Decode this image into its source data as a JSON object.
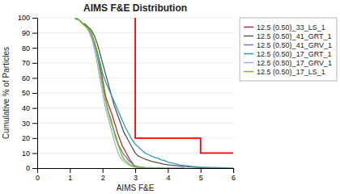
{
  "chart_data": {
    "type": "line",
    "title": "AIMS F&E Distribution",
    "xlabel": "AIMS F&E",
    "ylabel": "Cumulative % of Particles",
    "xlim": [
      0,
      6
    ],
    "ylim": [
      0,
      100
    ],
    "xticks": [
      0,
      1,
      2,
      3,
      4,
      5,
      6
    ],
    "yticks": [
      0,
      10,
      20,
      30,
      40,
      50,
      60,
      70,
      80,
      90,
      100
    ],
    "grid": "y",
    "legend": "right",
    "series": [
      {
        "name": "12.5 (0.50)_33_LS_1",
        "color": "#aa3333",
        "x": [
          1.15,
          1.2,
          1.25,
          1.3,
          1.35,
          1.4,
          1.45,
          1.5,
          1.55,
          1.6,
          1.65,
          1.7,
          1.75,
          1.8,
          1.85,
          1.9,
          1.95,
          2.0,
          2.05,
          2.1,
          2.15,
          2.2,
          2.25,
          2.3,
          2.35,
          2.4,
          2.45,
          2.5,
          2.55,
          2.6,
          2.65,
          2.7,
          2.75,
          2.8,
          2.85,
          2.9,
          2.95,
          3.0,
          3.1,
          3.2,
          3.3,
          3.5,
          3.7,
          3.9,
          4.1,
          4.3
        ],
        "values": [
          100,
          99,
          99,
          98,
          97,
          96,
          95,
          94,
          93,
          91,
          89,
          87,
          84,
          80,
          76,
          71,
          65,
          59,
          53,
          47,
          44,
          41,
          38,
          35,
          31,
          28,
          24,
          21,
          18,
          15,
          13,
          11,
          9,
          7,
          5,
          4,
          2,
          1,
          0.5,
          0.3,
          0.1,
          0.05,
          0.02,
          0.01,
          0.0,
          0.0
        ]
      },
      {
        "name": "12.5 (0.50)_41_GRT_1",
        "color": "#555555",
        "x": [
          1.15,
          1.2,
          1.25,
          1.3,
          1.35,
          1.4,
          1.45,
          1.5,
          1.55,
          1.6,
          1.65,
          1.7,
          1.75,
          1.8,
          1.85,
          1.9,
          1.95,
          2.0,
          2.05,
          2.1,
          2.15,
          2.2,
          2.25,
          2.3,
          2.35,
          2.4,
          2.45,
          2.5,
          2.55,
          2.6,
          2.65,
          2.7,
          2.75,
          2.8,
          2.85,
          2.9,
          2.95,
          3.0,
          3.1,
          3.2,
          3.3,
          3.5,
          3.7,
          3.9,
          4.1,
          4.3,
          4.5,
          4.7,
          5.0,
          5.3,
          5.6
        ],
        "values": [
          100,
          99,
          99,
          98,
          97,
          96,
          96,
          95,
          94,
          93,
          92,
          90,
          88,
          85,
          82,
          78,
          74,
          70,
          66,
          62,
          58,
          54,
          50,
          46,
          42,
          39,
          36,
          33,
          30,
          27,
          24,
          22,
          20,
          18,
          16,
          14,
          12,
          10,
          8,
          7,
          6,
          4.5,
          3.5,
          2.5,
          2,
          1.5,
          1.0,
          0.7,
          0.4,
          0.2,
          0.0
        ]
      },
      {
        "name": "12.5 (0.50)_41_GRV_1",
        "color": "#7777bb",
        "x": [
          1.15,
          1.2,
          1.25,
          1.3,
          1.35,
          1.4,
          1.45,
          1.5,
          1.55,
          1.6,
          1.65,
          1.7,
          1.75,
          1.8,
          1.85,
          1.9,
          1.95,
          2.0,
          2.05,
          2.1,
          2.15,
          2.2,
          2.25,
          2.3,
          2.35,
          2.4,
          2.45,
          2.5,
          2.55,
          2.6,
          2.65,
          2.7,
          2.75,
          2.8,
          2.85,
          2.9,
          2.95,
          3.0,
          3.1,
          3.2,
          3.3,
          3.5,
          3.7,
          3.9,
          4.1,
          4.3,
          4.5
        ],
        "values": [
          100,
          99,
          99,
          98,
          97,
          96,
          95,
          94,
          93,
          91,
          89,
          86,
          82,
          78,
          73,
          67,
          61,
          55,
          49,
          44,
          40,
          36,
          33,
          29,
          25,
          22,
          18,
          15,
          13,
          11,
          9,
          8,
          6.5,
          5,
          4,
          3,
          2,
          1.5,
          1,
          0.7,
          0.5,
          0.3,
          0.1,
          0.05,
          0.02,
          0.01,
          0.0
        ]
      },
      {
        "name": "12.5 (0.50)_17_GRT_1",
        "color": "#3399bb",
        "x": [
          1.2,
          1.25,
          1.3,
          1.35,
          1.4,
          1.45,
          1.5,
          1.55,
          1.6,
          1.65,
          1.7,
          1.75,
          1.8,
          1.85,
          1.9,
          1.95,
          2.0,
          2.1,
          2.2,
          2.3,
          2.4,
          2.5,
          2.6,
          2.7,
          2.8,
          2.9,
          3.0,
          3.1,
          3.2,
          3.3,
          3.4,
          3.5,
          3.6,
          3.7,
          3.8,
          3.9,
          4.0,
          4.1,
          4.2,
          4.3,
          4.4,
          4.5,
          4.6,
          4.7,
          4.8,
          4.9,
          5.0,
          5.2,
          5.4,
          5.6,
          5.8,
          6.0
        ],
        "values": [
          100,
          99,
          98,
          97,
          96,
          95,
          94,
          93,
          92,
          90,
          87,
          84,
          80,
          76,
          72,
          68,
          63,
          57,
          52,
          47,
          42,
          37,
          32,
          27,
          23,
          19,
          16,
          14,
          12,
          10,
          9,
          8,
          7,
          6.5,
          5.5,
          5,
          4,
          3.5,
          3,
          2.5,
          2,
          1.8,
          1.5,
          1.2,
          1,
          0.8,
          0.6,
          0.5,
          0.4,
          0.3,
          0.2,
          0.1
        ]
      },
      {
        "name": "12.5 (0.50)_17_GRV_1",
        "color": "#aaaadd",
        "x": [
          1.15,
          1.2,
          1.25,
          1.3,
          1.35,
          1.4,
          1.45,
          1.5,
          1.55,
          1.6,
          1.65,
          1.7,
          1.75,
          1.8,
          1.85,
          1.9,
          1.95,
          2.0,
          2.05,
          2.1,
          2.15,
          2.2,
          2.25,
          2.3,
          2.35,
          2.4,
          2.45,
          2.5,
          2.55,
          2.6,
          2.65,
          2.7,
          2.75,
          2.8,
          2.85,
          2.9,
          3.0,
          3.1,
          3.2,
          3.3,
          3.5,
          3.7,
          3.9,
          4.1,
          4.3
        ],
        "values": [
          100,
          99,
          99,
          98,
          97,
          96,
          95,
          94,
          92,
          90,
          87,
          84,
          79,
          74,
          68,
          62,
          56,
          50,
          44,
          39,
          35,
          31,
          27,
          23,
          19,
          15,
          12,
          9,
          7,
          5.5,
          4.5,
          3.5,
          2.8,
          2.2,
          1.7,
          1.3,
          0.8,
          0.5,
          0.3,
          0.15,
          0.08,
          0.04,
          0.02,
          0.01,
          0.0
        ]
      },
      {
        "name": "12.5 (0.50)_17_LS_1",
        "color": "#66cc00",
        "x": [
          1.15,
          1.2,
          1.25,
          1.3,
          1.35,
          1.4,
          1.45,
          1.5,
          1.55,
          1.6,
          1.65,
          1.7,
          1.75,
          1.8,
          1.85,
          1.9,
          1.95,
          2.0,
          2.05,
          2.1,
          2.15,
          2.2,
          2.25,
          2.3,
          2.35,
          2.4,
          2.45,
          2.5,
          2.55,
          2.6,
          2.65,
          2.7,
          2.75,
          2.8,
          2.85,
          2.9,
          2.95,
          3.0,
          3.1,
          3.2,
          3.3,
          3.5,
          3.7,
          3.9
        ],
        "values": [
          100,
          99,
          99,
          98,
          97,
          96,
          95,
          94,
          93,
          92,
          90,
          87,
          84,
          79,
          74,
          68,
          62,
          56,
          50,
          44,
          39,
          35,
          31,
          28,
          24,
          20,
          17,
          14,
          11,
          8,
          6,
          5,
          4,
          3,
          2,
          1.5,
          1,
          0.7,
          0.5,
          0.3,
          0.1,
          0.05,
          0.02,
          0.0
        ]
      },
      {
        "color": "#ff0000",
        "x": [
          3.0,
          3.0,
          5.0,
          5.0,
          6.0
        ],
        "values": [
          100,
          20,
          20,
          10,
          10
        ]
      }
    ]
  }
}
